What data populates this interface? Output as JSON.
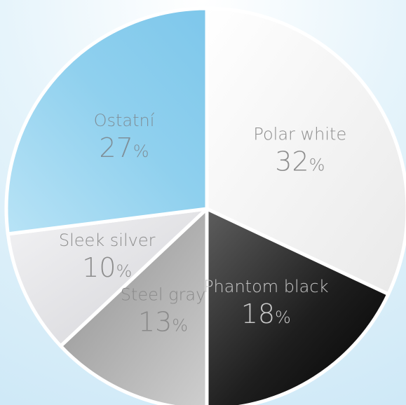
{
  "chart_data": {
    "type": "pie",
    "slices": [
      {
        "name": "Polar white",
        "value": 32,
        "value_label": "32",
        "unit": "%",
        "color": "#ffffff",
        "text_color": "#8c8c8c"
      },
      {
        "name": "Phantom black",
        "value": 18,
        "value_label": "18",
        "unit": "%",
        "color": "#1c1c1c",
        "text_color": "#c8c8c8"
      },
      {
        "name": "Steel gray",
        "value": 13,
        "value_label": "13",
        "unit": "%",
        "color": "#a6a6a6",
        "text_color": "#8a8a8a"
      },
      {
        "name": "Sleek silver",
        "value": 10,
        "value_label": "10",
        "unit": "%",
        "color": "#e3e3e5",
        "text_color": "#8c8c8c"
      },
      {
        "name": "Ostatní",
        "value": 27,
        "value_label": "27",
        "unit": "%",
        "color": "#8fd0ee",
        "text_color": "#7f8f99"
      }
    ],
    "start_angle_deg": 0,
    "direction": "clockwise",
    "background_color": "#d9eef9",
    "separator_color": "#ffffff"
  }
}
